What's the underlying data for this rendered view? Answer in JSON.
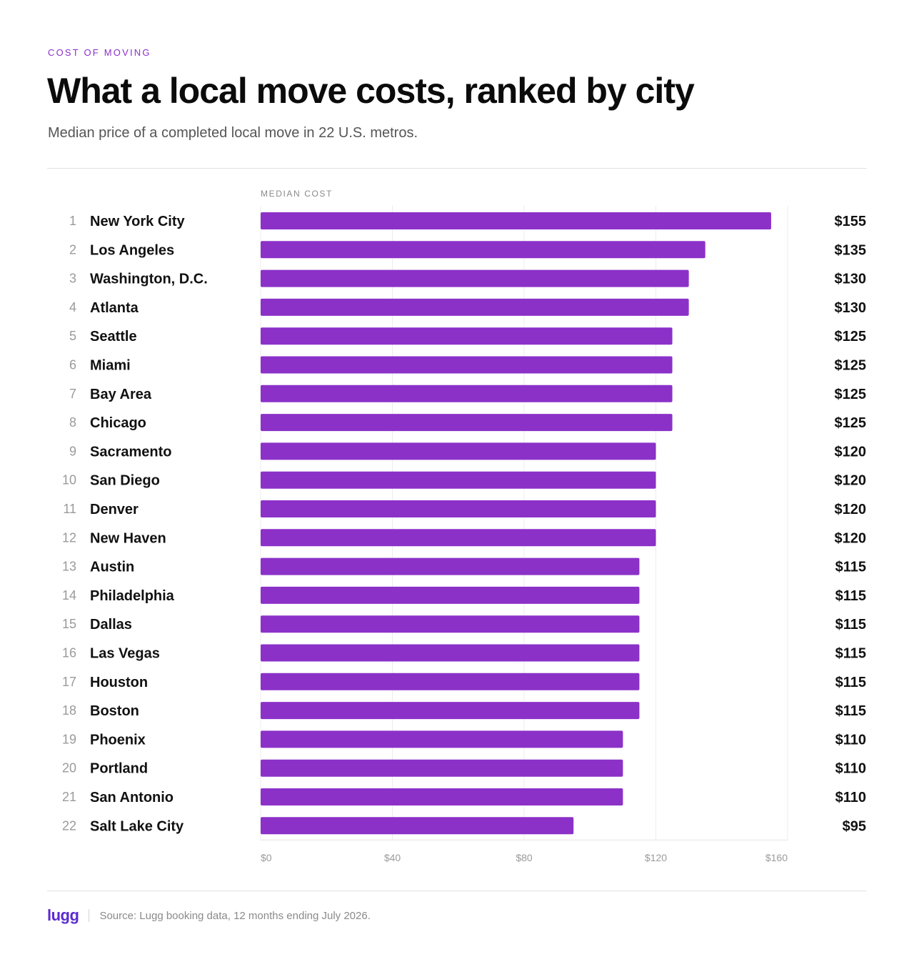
{
  "header": {
    "eyebrow": "COST OF MOVING",
    "title": "What a local move costs, ranked by city",
    "subtitle": "Median price of a completed local move in 22 U.S. metros."
  },
  "footer": {
    "logo": "lugg",
    "source": "Source: Lugg booking data, 12 months ending July 2026."
  },
  "colors": {
    "bar": "#8b31c8",
    "accent": "#8b2fc9",
    "logo": "#5b2bd1",
    "grid": "#ececec"
  },
  "chart_data": {
    "type": "bar",
    "orientation": "horizontal",
    "axis_title": "MEDIAN COST",
    "ranks": [
      "1",
      "2",
      "3",
      "4",
      "5",
      "6",
      "7",
      "8",
      "9",
      "10",
      "11",
      "12",
      "13",
      "14",
      "15",
      "16",
      "17",
      "18",
      "19",
      "20",
      "21",
      "22"
    ],
    "categories": [
      "New York City",
      "Los Angeles",
      "Washington, D.C.",
      "Atlanta",
      "Seattle",
      "Miami",
      "Bay Area",
      "Chicago",
      "Sacramento",
      "San Diego",
      "Denver",
      "New Haven",
      "Austin",
      "Philadelphia",
      "Dallas",
      "Las Vegas",
      "Houston",
      "Boston",
      "Phoenix",
      "Portland",
      "San Antonio",
      "Salt Lake City"
    ],
    "values": [
      155,
      135,
      130,
      130,
      125,
      125,
      125,
      125,
      120,
      120,
      120,
      120,
      115,
      115,
      115,
      115,
      115,
      115,
      110,
      110,
      110,
      95
    ],
    "value_labels": [
      "$155",
      "$135",
      "$130",
      "$130",
      "$125",
      "$125",
      "$125",
      "$125",
      "$120",
      "$120",
      "$120",
      "$120",
      "$115",
      "$115",
      "$115",
      "$115",
      "$115",
      "$115",
      "$110",
      "$110",
      "$110",
      "$95"
    ],
    "xlim": [
      0,
      160
    ],
    "xticks": [
      0,
      40,
      80,
      120,
      160
    ],
    "xtick_labels": [
      "$0",
      "$40",
      "$80",
      "$120",
      "$160"
    ],
    "grid": true
  }
}
